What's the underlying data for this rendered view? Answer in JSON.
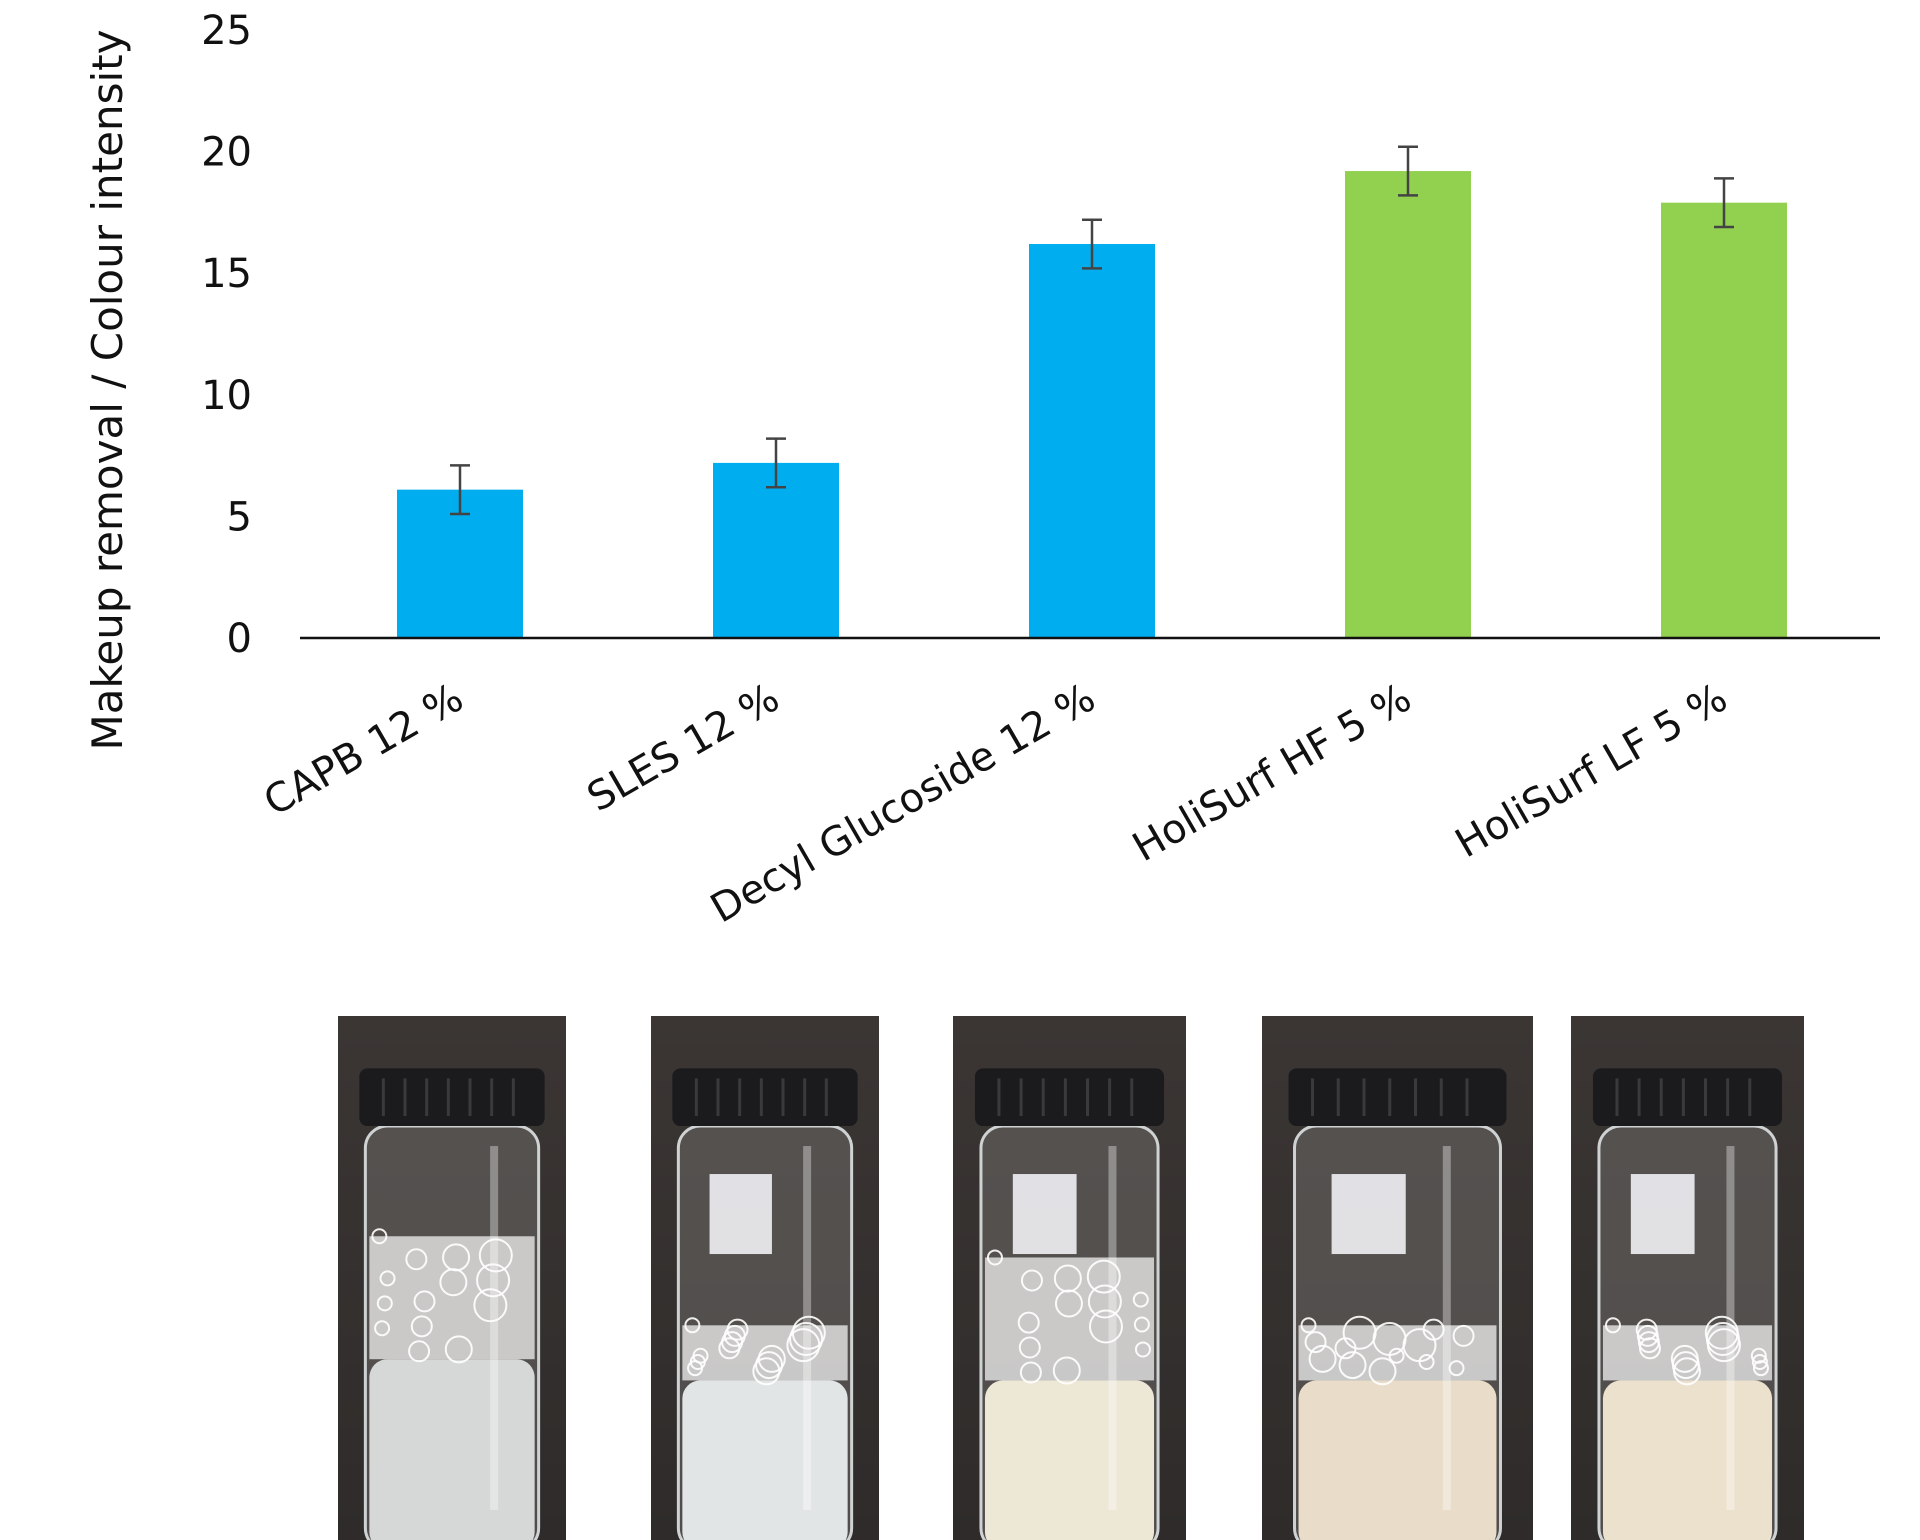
{
  "chart_data": {
    "type": "bar",
    "ylabel": "Makeup removal / Colour intensity",
    "xlabel": "",
    "ylim": [
      0,
      25
    ],
    "yticks": [
      0,
      5,
      10,
      15,
      20,
      25
    ],
    "grid": false,
    "legend": "none",
    "categories": [
      "CAPB 12 %",
      "SLES 12 %",
      "Decyl Glucoside 12 %",
      "HoliSurf HF 5 %",
      "HoliSurf LF 5 %"
    ],
    "values": [
      6.1,
      7.2,
      16.2,
      19.2,
      17.9
    ],
    "errors": [
      1.0,
      1.0,
      1.0,
      1.0,
      1.0
    ],
    "colors": [
      "#00adef",
      "#00adef",
      "#00adef",
      "#92d050",
      "#92d050"
    ]
  },
  "photos": {
    "description_icons": [
      "vial-capb-icon",
      "vial-sles-icon",
      "vial-decyl-glucoside-icon",
      "vial-holisurf-hf-icon",
      "vial-holisurf-lf-icon"
    ],
    "liquid_colors": [
      "#d6d8d8",
      "#e2e5e6",
      "#ede7d6",
      "#e9dcc8",
      "#ece1cd"
    ]
  }
}
